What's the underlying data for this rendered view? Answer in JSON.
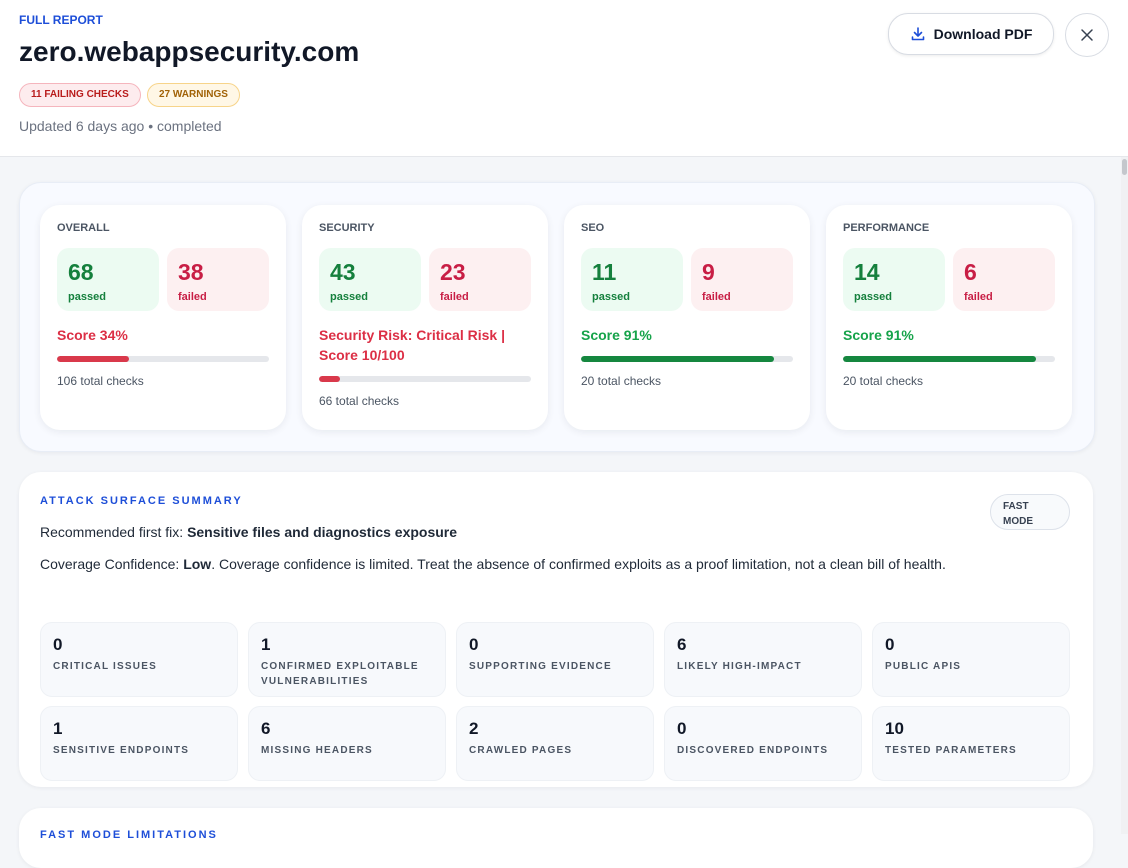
{
  "header": {
    "eyebrow": "FULL REPORT",
    "title": "zero.webappsecurity.com",
    "badges": [
      "11 FAILING CHECKS",
      "27 WARNINGS"
    ],
    "updated": "Updated 6 days ago • completed",
    "download": "Download PDF"
  },
  "score_cards": [
    {
      "title": "OVERALL",
      "passed": 68,
      "passed_label": "passed",
      "failed": 38,
      "failed_label": "failed",
      "score": "Score 34%",
      "progress": 34,
      "total": "106 total checks",
      "status": "bad"
    },
    {
      "title": "SECURITY",
      "passed": 43,
      "passed_label": "passed",
      "failed": 23,
      "failed_label": "failed",
      "score": "Security Risk: Critical Risk | Score 10/100",
      "progress": 10,
      "total": "66 total checks",
      "status": "bad"
    },
    {
      "title": "SEO",
      "passed": 11,
      "passed_label": "passed",
      "failed": 9,
      "failed_label": "failed",
      "score": "Score 91%",
      "progress": 91,
      "total": "20 total checks",
      "status": "good"
    },
    {
      "title": "PERFORMANCE",
      "passed": 14,
      "passed_label": "passed",
      "failed": 6,
      "failed_label": "failed",
      "score": "Score 91%",
      "progress": 91,
      "total": "20 total checks",
      "status": "good"
    }
  ],
  "attack_surface": {
    "title": "ATTACK SURFACE SUMMARY",
    "mode": "FAST MODE",
    "fix_label": "Recommended first fix:",
    "fix": "Sensitive files and diagnostics exposure",
    "confidence_label": "Coverage Confidence:",
    "confidence": "Low",
    "confidence_text": ". Coverage confidence is limited. Treat the absence of confirmed exploits as a proof limitation, not a clean bill of health.",
    "stats": [
      {
        "value": 0,
        "label": "CRITICAL ISSUES"
      },
      {
        "value": 1,
        "label": "CONFIRMED EXPLOITABLE VULNERABILITIES"
      },
      {
        "value": 0,
        "label": "SUPPORTING EVIDENCE"
      },
      {
        "value": 6,
        "label": "LIKELY HIGH-IMPACT"
      },
      {
        "value": 0,
        "label": "PUBLIC APIS"
      },
      {
        "value": 1,
        "label": "SENSITIVE ENDPOINTS"
      },
      {
        "value": 6,
        "label": "MISSING HEADERS"
      },
      {
        "value": 2,
        "label": "CRAWLED PAGES"
      },
      {
        "value": 0,
        "label": "DISCOVERED ENDPOINTS"
      },
      {
        "value": 10,
        "label": "TESTED PARAMETERS"
      }
    ]
  },
  "limitations": {
    "title": "FAST MODE LIMITATIONS"
  }
}
